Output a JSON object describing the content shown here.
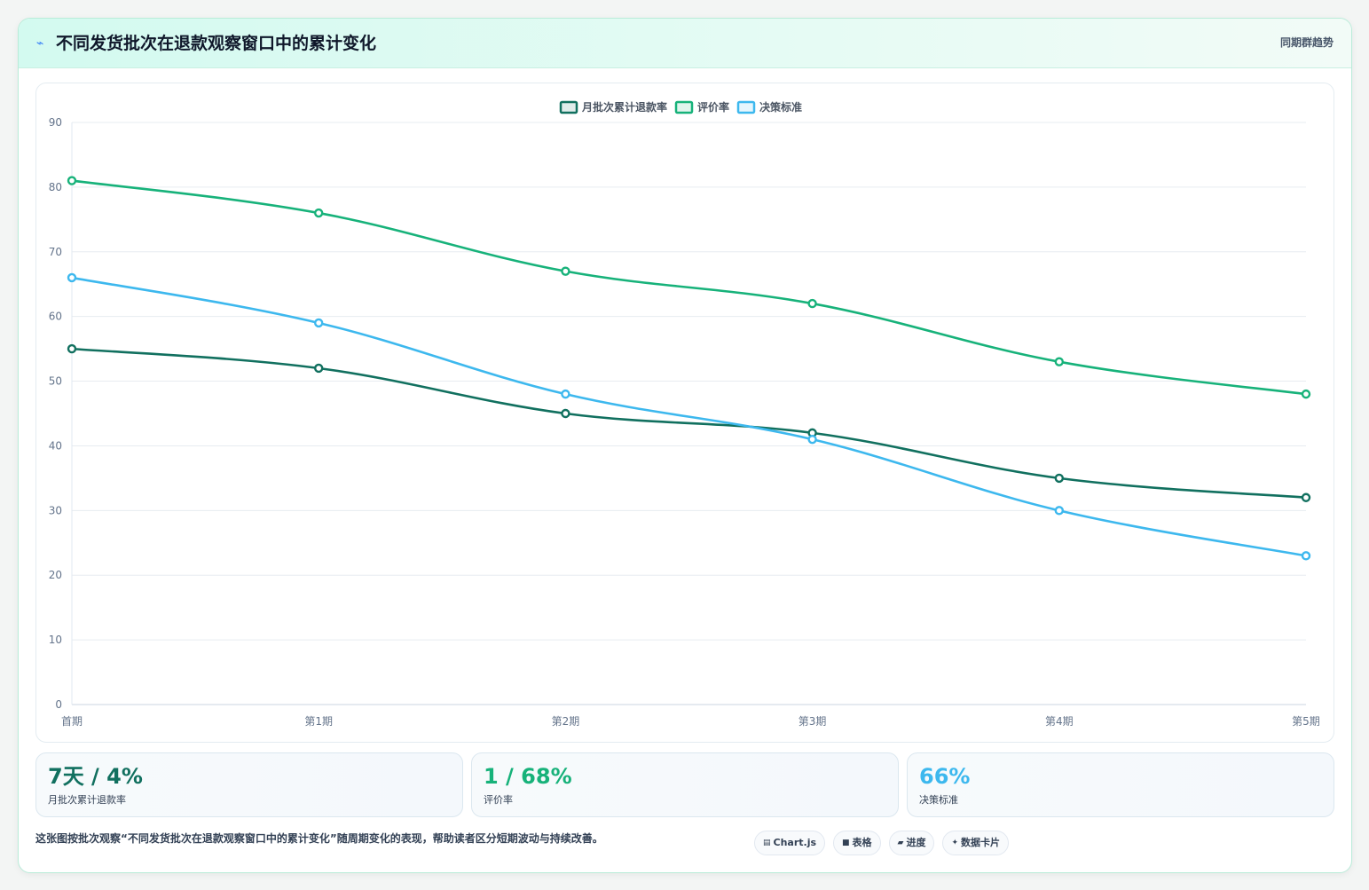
{
  "header": {
    "icon": "trend-icon",
    "title": "不同发货批次在退款观察窗口中的累计变化",
    "tag": "同期群趋势"
  },
  "chart_data": {
    "type": "line",
    "categories": [
      "首期",
      "第1期",
      "第2期",
      "第3期",
      "第4期",
      "第5期"
    ],
    "series": [
      {
        "name": "月批次累计退款率",
        "color": "#11705f",
        "values": [
          55,
          52,
          45,
          42,
          35,
          32
        ]
      },
      {
        "name": "评价率",
        "color": "#17b27a",
        "values": [
          81,
          76,
          67,
          62,
          53,
          48
        ]
      },
      {
        "name": "决策标准",
        "color": "#3db8ee",
        "values": [
          66,
          59,
          48,
          41,
          30,
          23
        ]
      }
    ],
    "ylim": [
      0,
      90
    ],
    "yticks": [
      0,
      10,
      20,
      30,
      40,
      50,
      60,
      70,
      80,
      90
    ],
    "legend_position": "top-center",
    "grid": true
  },
  "stats": [
    {
      "value": "7天 / 4%",
      "label": "月批次累计退款率",
      "color": "#11705f"
    },
    {
      "value": "1 / 68%",
      "label": "评价率",
      "color": "#17b27a"
    },
    {
      "value": "66%",
      "label": "决策标准",
      "color": "#3db8ee"
    }
  ],
  "footer": {
    "description": "这张图按批次观察“不同发货批次在退款观察窗口中的累计变化”随周期变化的表现，帮助读者区分短期波动与持续改善。"
  },
  "pills": [
    {
      "icon": "▤",
      "icon_name": "chart-icon",
      "label": "Chart.js"
    },
    {
      "icon": "■",
      "icon_name": "table-icon",
      "label": "表格"
    },
    {
      "icon": "▰",
      "icon_name": "progress-icon",
      "label": "进度"
    },
    {
      "icon": "✦",
      "icon_name": "sparkle-icon",
      "label": "数据卡片"
    }
  ]
}
